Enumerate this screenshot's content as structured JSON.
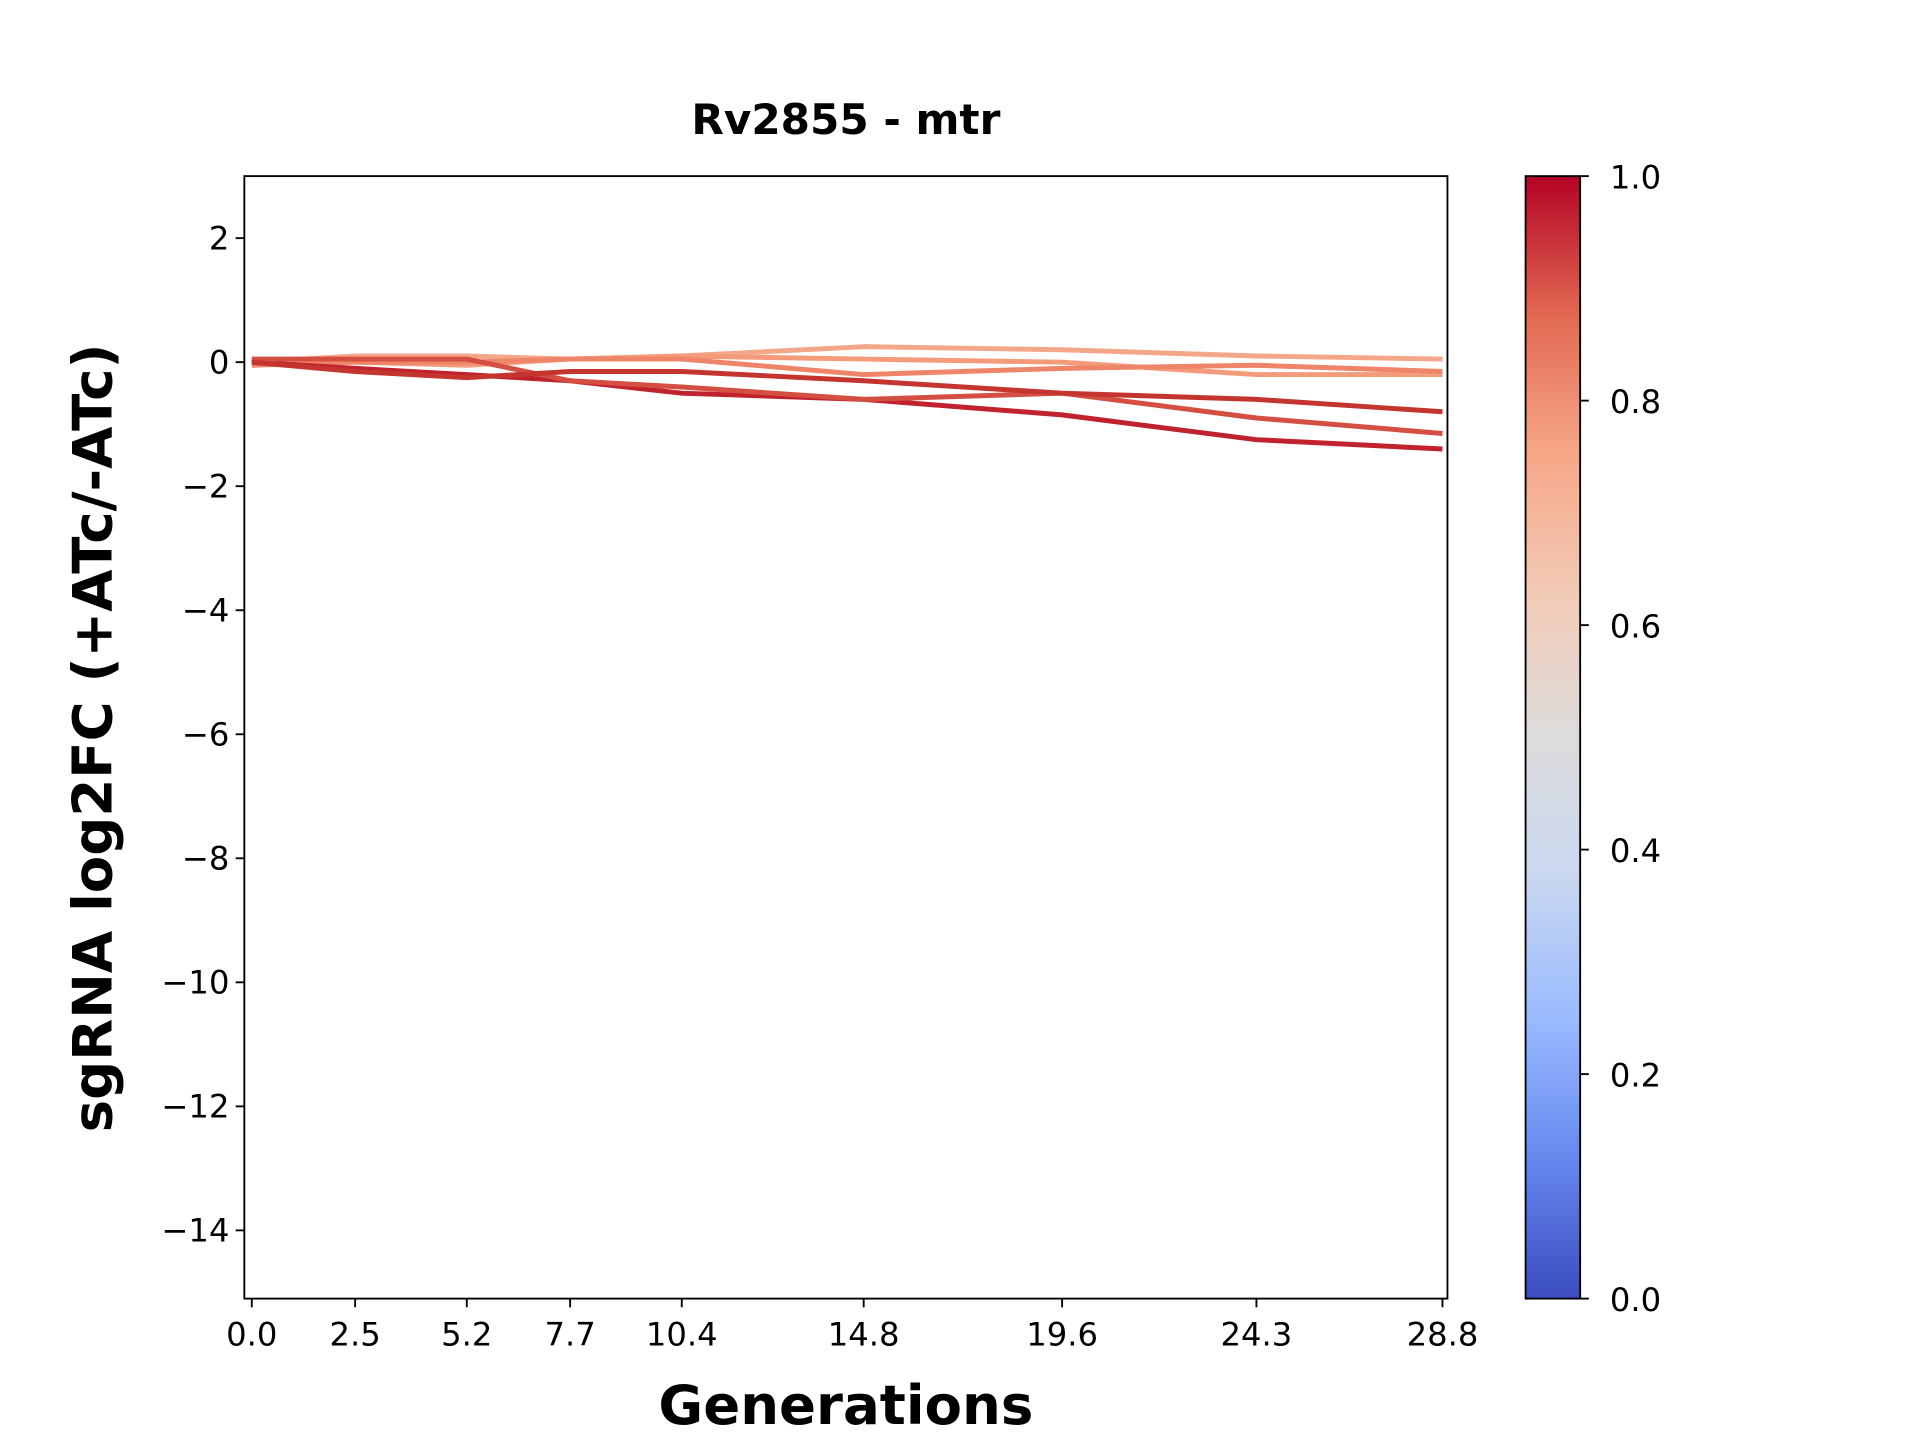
{
  "chart_data": {
    "type": "line",
    "title": "Rv2855 - mtr",
    "xlabel": "Generations",
    "ylabel": "sgRNA log2FC (+ATc/-ATc)",
    "x": [
      0,
      2.5,
      5.2,
      7.7,
      10.4,
      14.8,
      19.6,
      24.3,
      28.8
    ],
    "xlim": [
      -0.18,
      28.92
    ],
    "xticks": [
      {
        "value": 0,
        "label": "0.0"
      },
      2.5,
      5.2,
      7.7,
      10.4,
      14.8,
      19.6,
      24.3,
      28.8
    ],
    "ylim": [
      -15.1,
      3
    ],
    "yticks": [
      {
        "value": -14,
        "label": "−14"
      },
      {
        "value": -12,
        "label": "−12"
      },
      {
        "value": -10,
        "label": "−10"
      },
      {
        "value": -8,
        "label": "−8"
      },
      {
        "value": -6,
        "label": "−6"
      },
      {
        "value": -4,
        "label": "−4"
      },
      {
        "value": -2,
        "label": "−2"
      },
      0,
      2
    ],
    "series": [
      {
        "color": "#f4a688",
        "values": [
          0,
          0.1,
          0.1,
          0.05,
          0.1,
          0.25,
          0.2,
          0.1,
          0.05
        ]
      },
      {
        "color": "#f39b7b",
        "values": [
          0,
          0,
          -0.05,
          0.05,
          0.1,
          0.05,
          0,
          -0.2,
          -0.2
        ]
      },
      {
        "color": "#ee8468",
        "values": [
          -0.05,
          0,
          0,
          0.05,
          0.05,
          -0.2,
          -0.1,
          -0.05,
          -0.15
        ]
      },
      {
        "color": "#c0232e",
        "values": [
          0,
          -0.1,
          -0.2,
          -0.3,
          -0.5,
          -0.6,
          -0.85,
          -1.25,
          -1.4
        ]
      },
      {
        "color": "#d44e41",
        "values": [
          0.05,
          0.05,
          0.05,
          -0.3,
          -0.4,
          -0.6,
          -0.5,
          -0.9,
          -1.15
        ]
      },
      {
        "color": "#c53530",
        "values": [
          0,
          -0.15,
          -0.25,
          -0.15,
          -0.15,
          -0.3,
          -0.5,
          -0.6,
          -0.8
        ]
      }
    ],
    "colorbar": {
      "lim": [
        0,
        1
      ],
      "ticks": [
        {
          "value": 0,
          "label": "0.0"
        },
        0.2,
        0.4,
        0.6,
        0.8,
        {
          "value": 1,
          "label": "1.0"
        }
      ],
      "colors": [
        "#3b4cc0",
        "#6788ee",
        "#9abbff",
        "#c9d7f0",
        "#dddcdc",
        "#f2cbb7",
        "#f7a889",
        "#e26952",
        "#b40426"
      ]
    }
  }
}
